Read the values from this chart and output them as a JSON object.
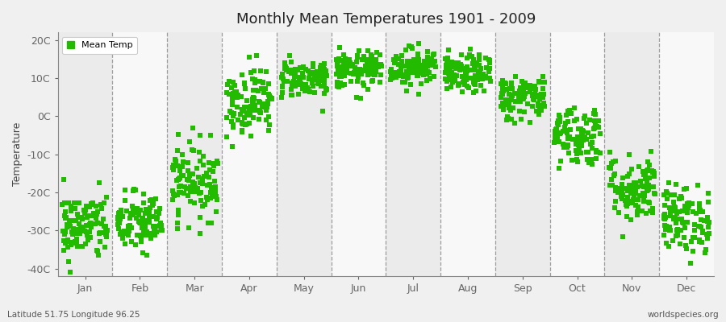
{
  "title": "Monthly Mean Temperatures 1901 - 2009",
  "ylabel": "Temperature",
  "xlabel_labels": [
    "Jan",
    "Feb",
    "Mar",
    "Apr",
    "May",
    "Jun",
    "Jul",
    "Aug",
    "Sep",
    "Oct",
    "Nov",
    "Dec"
  ],
  "ytick_labels": [
    "20C",
    "10C",
    "0C",
    "-10C",
    "-20C",
    "-30C",
    "-40C"
  ],
  "ytick_values": [
    20,
    10,
    0,
    -10,
    -20,
    -30,
    -40
  ],
  "ylim": [
    -42,
    22
  ],
  "dot_color": "#22bb00",
  "bg_color": "#f0f0f0",
  "plot_bg": "#f4f4f4",
  "footer_left": "Latitude 51.75 Longitude 96.25",
  "footer_right": "worldspecies.org",
  "legend_label": "Mean Temp",
  "monthly_mean_temps": [
    -29,
    -28,
    -17,
    4,
    10,
    12,
    13,
    11,
    5,
    -5,
    -19,
    -27
  ],
  "monthly_std_temps": [
    4.5,
    4.0,
    5.0,
    4.5,
    2.5,
    2.5,
    2.5,
    2.5,
    3.0,
    4.0,
    4.5,
    4.5
  ],
  "n_years": 109,
  "seed": 42,
  "marker_size": 4,
  "band_colors": [
    "#ebebeb",
    "#f8f8f8"
  ]
}
